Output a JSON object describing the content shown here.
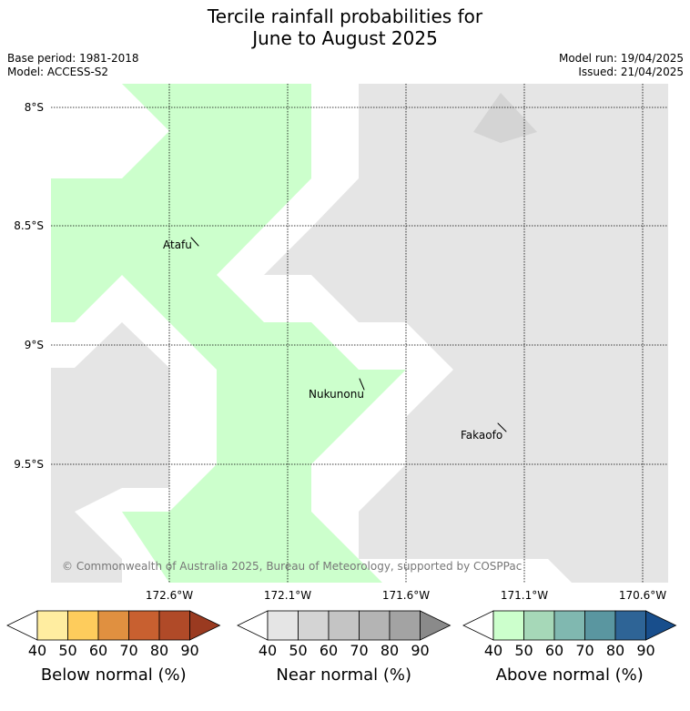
{
  "title": {
    "line1": "Tercile rainfall probabilities for",
    "line2": "June to August 2025"
  },
  "meta": {
    "base_period": "Base period: 1981-2018",
    "model": "Model: ACCESS-S2",
    "model_run": "Model run: 19/04/2025",
    "issued": "Issued: 21/04/2025"
  },
  "map": {
    "lat_labels": [
      "8°S",
      "8.5°S",
      "9°S",
      "9.5°S"
    ],
    "lon_labels": [
      "172.6°W",
      "172.1°W",
      "171.6°W",
      "171.1°W",
      "170.6°W"
    ],
    "places": [
      {
        "name": "Atafu"
      },
      {
        "name": "Nukunonu"
      },
      {
        "name": "Fakaofo"
      }
    ],
    "copyright": "© Commonwealth of Australia 2025, Bureau of Meteorology, supported by COSPPac",
    "colors": {
      "above_40": "#ccffcc",
      "near_40": "#e5e5e5",
      "gridline": "#000000"
    }
  },
  "legends": [
    {
      "label": "Below normal (%)",
      "ticks": [
        "40",
        "50",
        "60",
        "70",
        "80",
        "90"
      ],
      "colors": [
        "#ffffff",
        "#ffeda0",
        "#fecc5c",
        "#e09040",
        "#c86030",
        "#b04a28",
        "#9a3a20"
      ]
    },
    {
      "label": "Near normal (%)",
      "ticks": [
        "40",
        "50",
        "60",
        "70",
        "80",
        "90"
      ],
      "colors": [
        "#ffffff",
        "#e5e5e5",
        "#d4d4d4",
        "#c4c4c4",
        "#b4b4b4",
        "#a3a3a3",
        "#8a8a8a"
      ]
    },
    {
      "label": "Above normal (%)",
      "ticks": [
        "40",
        "50",
        "60",
        "70",
        "80",
        "90"
      ],
      "colors": [
        "#ffffff",
        "#ccffcc",
        "#a6d8b8",
        "#80b8b0",
        "#5a96a0",
        "#2e6496",
        "#184e8c"
      ]
    }
  ]
}
